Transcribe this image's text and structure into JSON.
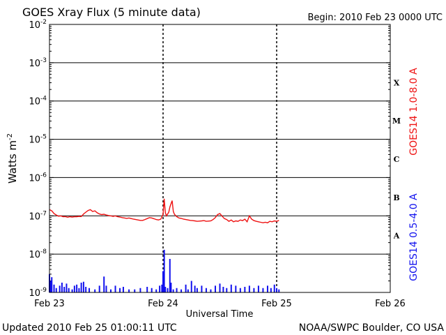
{
  "chart_data": {
    "type": "line",
    "title": "GOES Xray Flux (5 minute data)",
    "begin_label": "Begin:  2010 Feb 23 0000 UTC",
    "ylabel_base": "Watts m",
    "ylabel_exp": "-2",
    "xlabel": "Universal Time",
    "y_scale": "log",
    "ylim": [
      1e-09,
      0.01
    ],
    "y_ticks": [
      {
        "value": 0.01,
        "mantissa": "10",
        "exp": "-2"
      },
      {
        "value": 0.001,
        "mantissa": "10",
        "exp": "-3"
      },
      {
        "value": 0.0001,
        "mantissa": "10",
        "exp": "-4"
      },
      {
        "value": 1e-05,
        "mantissa": "10",
        "exp": "-5"
      },
      {
        "value": 1e-06,
        "mantissa": "10",
        "exp": "-6"
      },
      {
        "value": 1e-07,
        "mantissa": "10",
        "exp": "-7"
      },
      {
        "value": 1e-08,
        "mantissa": "10",
        "exp": "-8"
      },
      {
        "value": 1e-09,
        "mantissa": "10",
        "exp": "-9"
      }
    ],
    "x_ticks": [
      {
        "day": 0,
        "label": "Feb 23"
      },
      {
        "day": 1,
        "label": "Feb 24"
      },
      {
        "day": 2,
        "label": "Feb 25"
      },
      {
        "day": 3,
        "label": "Feb 26"
      }
    ],
    "xlim_days": [
      0,
      3
    ],
    "flare_classes": [
      {
        "label": "X",
        "value": 0.000316
      },
      {
        "label": "M",
        "value": 3.16e-05
      },
      {
        "label": "C",
        "value": 3.16e-06
      },
      {
        "label": "B",
        "value": 3.16e-07
      },
      {
        "label": "A",
        "value": 3.16e-08
      }
    ],
    "grid": true,
    "series": [
      {
        "name": "GOES14 1.0-8.0 A",
        "color": "#ee1111",
        "style": "line",
        "points": [
          [
            0.0,
            1.45e-07
          ],
          [
            0.02,
            1.35e-07
          ],
          [
            0.04,
            1.15e-07
          ],
          [
            0.06,
            1.05e-07
          ],
          [
            0.08,
            9.8e-08
          ],
          [
            0.1,
            1e-07
          ],
          [
            0.12,
            9.5e-08
          ],
          [
            0.14,
            9.6e-08
          ],
          [
            0.16,
            9.2e-08
          ],
          [
            0.18,
            9.5e-08
          ],
          [
            0.2,
            9.3e-08
          ],
          [
            0.22,
            9.5e-08
          ],
          [
            0.24,
            9.5e-08
          ],
          [
            0.26,
            9.7e-08
          ],
          [
            0.28,
            9.6e-08
          ],
          [
            0.3,
            1.12e-07
          ],
          [
            0.32,
            1.25e-07
          ],
          [
            0.34,
            1.38e-07
          ],
          [
            0.36,
            1.45e-07
          ],
          [
            0.38,
            1.3e-07
          ],
          [
            0.4,
            1.35e-07
          ],
          [
            0.42,
            1.2e-07
          ],
          [
            0.44,
            1.12e-07
          ],
          [
            0.46,
            1.08e-07
          ],
          [
            0.48,
            1.1e-07
          ],
          [
            0.5,
            1.05e-07
          ],
          [
            0.52,
            1.02e-07
          ],
          [
            0.54,
            1e-07
          ],
          [
            0.56,
            9.7e-08
          ],
          [
            0.58,
            1e-07
          ],
          [
            0.6,
            9.5e-08
          ],
          [
            0.62,
            9.3e-08
          ],
          [
            0.64,
            9e-08
          ],
          [
            0.66,
            8.8e-08
          ],
          [
            0.68,
            8.6e-08
          ],
          [
            0.7,
            8.8e-08
          ],
          [
            0.72,
            8.5e-08
          ],
          [
            0.74,
            8.2e-08
          ],
          [
            0.76,
            8e-08
          ],
          [
            0.78,
            7.8e-08
          ],
          [
            0.8,
            7.6e-08
          ],
          [
            0.82,
            7.6e-08
          ],
          [
            0.84,
            8e-08
          ],
          [
            0.86,
            8.5e-08
          ],
          [
            0.88,
            9e-08
          ],
          [
            0.9,
            8.8e-08
          ],
          [
            0.92,
            8.4e-08
          ],
          [
            0.94,
            8e-08
          ],
          [
            0.96,
            7.8e-08
          ],
          [
            0.98,
            8.2e-08
          ],
          [
            1.0,
            1.1e-07
          ],
          [
            1.01,
            2.8e-07
          ],
          [
            1.02,
            1.2e-07
          ],
          [
            1.03,
            1e-07
          ],
          [
            1.05,
            1.25e-07
          ],
          [
            1.06,
            1.7e-07
          ],
          [
            1.08,
            2.5e-07
          ],
          [
            1.09,
            1.3e-07
          ],
          [
            1.1,
            1.1e-07
          ],
          [
            1.12,
            9.5e-08
          ],
          [
            1.14,
            8.8e-08
          ],
          [
            1.16,
            8.6e-08
          ],
          [
            1.18,
            8.2e-08
          ],
          [
            1.2,
            8e-08
          ],
          [
            1.22,
            7.8e-08
          ],
          [
            1.24,
            7.6e-08
          ],
          [
            1.26,
            7.5e-08
          ],
          [
            1.28,
            7.4e-08
          ],
          [
            1.3,
            7.2e-08
          ],
          [
            1.32,
            7.3e-08
          ],
          [
            1.34,
            7.4e-08
          ],
          [
            1.36,
            7.5e-08
          ],
          [
            1.38,
            7.2e-08
          ],
          [
            1.4,
            7.3e-08
          ],
          [
            1.42,
            7.4e-08
          ],
          [
            1.44,
            8e-08
          ],
          [
            1.46,
            9e-08
          ],
          [
            1.48,
            1.08e-07
          ],
          [
            1.5,
            1.15e-07
          ],
          [
            1.52,
            9.8e-08
          ],
          [
            1.54,
            8.5e-08
          ],
          [
            1.56,
            8e-08
          ],
          [
            1.58,
            7.2e-08
          ],
          [
            1.6,
            7.8e-08
          ],
          [
            1.62,
            7e-08
          ],
          [
            1.64,
            7.4e-08
          ],
          [
            1.66,
            7.2e-08
          ],
          [
            1.68,
            7.8e-08
          ],
          [
            1.7,
            7.5e-08
          ],
          [
            1.72,
            8.2e-08
          ],
          [
            1.74,
            7e-08
          ],
          [
            1.76,
            1e-07
          ],
          [
            1.78,
            8.2e-08
          ],
          [
            1.8,
            7.5e-08
          ],
          [
            1.82,
            7.2e-08
          ],
          [
            1.84,
            7e-08
          ],
          [
            1.86,
            6.8e-08
          ],
          [
            1.88,
            6.6e-08
          ],
          [
            1.9,
            6.8e-08
          ],
          [
            1.92,
            6.6e-08
          ],
          [
            1.94,
            7.2e-08
          ],
          [
            1.96,
            7e-08
          ],
          [
            1.98,
            7.4e-08
          ],
          [
            2.0,
            7.2e-08
          ],
          [
            2.02,
            7.6e-08
          ]
        ]
      },
      {
        "name": "GOES14 0.5-4.0 A",
        "color": "#1111ee",
        "style": "spikes",
        "points": [
          [
            0.0,
            3e-09
          ],
          [
            0.01,
            2e-09
          ],
          [
            0.02,
            2.5e-09
          ],
          [
            0.04,
            1.6e-09
          ],
          [
            0.06,
            1.3e-09
          ],
          [
            0.09,
            1.5e-09
          ],
          [
            0.11,
            1.8e-09
          ],
          [
            0.13,
            1.4e-09
          ],
          [
            0.15,
            1.7e-09
          ],
          [
            0.17,
            1.3e-09
          ],
          [
            0.2,
            1.2e-09
          ],
          [
            0.22,
            1.5e-09
          ],
          [
            0.24,
            1.6e-09
          ],
          [
            0.26,
            1.3e-09
          ],
          [
            0.28,
            1.8e-09
          ],
          [
            0.3,
            1.9e-09
          ],
          [
            0.32,
            1.4e-09
          ],
          [
            0.35,
            1.3e-09
          ],
          [
            0.4,
            1.2e-09
          ],
          [
            0.44,
            1.5e-09
          ],
          [
            0.48,
            2.6e-09
          ],
          [
            0.5,
            1.5e-09
          ],
          [
            0.54,
            1.2e-09
          ],
          [
            0.58,
            1.5e-09
          ],
          [
            0.62,
            1.3e-09
          ],
          [
            0.65,
            1.4e-09
          ],
          [
            0.7,
            1.2e-09
          ],
          [
            0.75,
            1.2e-09
          ],
          [
            0.8,
            1.3e-09
          ],
          [
            0.86,
            1.4e-09
          ],
          [
            0.9,
            1.3e-09
          ],
          [
            0.94,
            1.2e-09
          ],
          [
            0.97,
            1.5e-09
          ],
          [
            0.99,
            1.6e-09
          ],
          [
            1.0,
            3.6e-09
          ],
          [
            1.01,
            1.3e-08
          ],
          [
            1.02,
            1.4e-09
          ],
          [
            1.04,
            1.3e-09
          ],
          [
            1.06,
            7.5e-09
          ],
          [
            1.07,
            1.8e-09
          ],
          [
            1.09,
            1.2e-09
          ],
          [
            1.12,
            1.3e-09
          ],
          [
            1.16,
            1.2e-09
          ],
          [
            1.2,
            1.6e-09
          ],
          [
            1.22,
            1.2e-09
          ],
          [
            1.25,
            2e-09
          ],
          [
            1.28,
            1.5e-09
          ],
          [
            1.3,
            1.3e-09
          ],
          [
            1.34,
            1.5e-09
          ],
          [
            1.38,
            1.3e-09
          ],
          [
            1.42,
            1.2e-09
          ],
          [
            1.46,
            1.5e-09
          ],
          [
            1.5,
            1.7e-09
          ],
          [
            1.53,
            1.4e-09
          ],
          [
            1.56,
            1.3e-09
          ],
          [
            1.6,
            1.6e-09
          ],
          [
            1.64,
            1.5e-09
          ],
          [
            1.68,
            1.3e-09
          ],
          [
            1.72,
            1.4e-09
          ],
          [
            1.76,
            1.5e-09
          ],
          [
            1.8,
            1.3e-09
          ],
          [
            1.84,
            1.5e-09
          ],
          [
            1.88,
            1.3e-09
          ],
          [
            1.92,
            1.5e-09
          ],
          [
            1.95,
            1.3e-09
          ],
          [
            1.98,
            1.6e-09
          ],
          [
            2.0,
            1.3e-09
          ],
          [
            2.02,
            1.2e-09
          ]
        ]
      }
    ]
  },
  "footer": {
    "updated": "Updated 2010 Feb 25 01:00:11 UTC",
    "credit": "NOAA/SWPC Boulder, CO USA"
  }
}
